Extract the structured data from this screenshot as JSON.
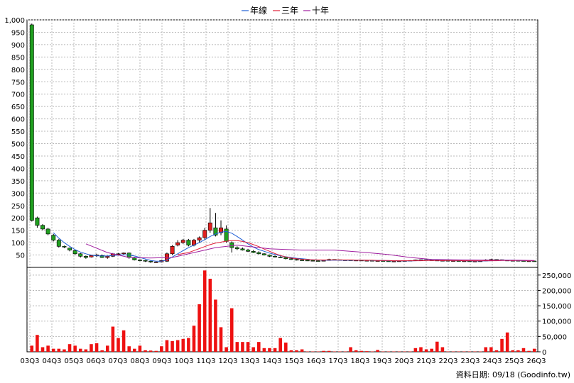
{
  "chart_data": {
    "type": "candlestick",
    "legend": [
      {
        "name": "年線",
        "color": "#1f5fd6"
      },
      {
        "name": "三年",
        "color": "#e0203a"
      },
      {
        "name": "十年",
        "color": "#a01fa0"
      }
    ],
    "x_ticks": [
      "03Q3",
      "04Q3",
      "05Q3",
      "06Q3",
      "07Q3",
      "08Q3",
      "09Q3",
      "10Q3",
      "11Q3",
      "12Q3",
      "13Q3",
      "14Q3",
      "15Q3",
      "16Q3",
      "17Q3",
      "18Q3",
      "19Q3",
      "20Q3",
      "21Q3",
      "22Q3",
      "23Q3",
      "24Q3",
      "25Q3",
      "26Q3"
    ],
    "price_axis": {
      "ticks": [
        "50",
        "100",
        "150",
        "200",
        "250",
        "300",
        "350",
        "400",
        "450",
        "500",
        "550",
        "600",
        "650",
        "700",
        "750",
        "800",
        "850",
        "900",
        "950",
        "1,000"
      ],
      "ylim": [
        0,
        1000
      ]
    },
    "volume_axis": {
      "ticks": [
        "0",
        "50,000",
        "100,000",
        "150,000",
        "200,000",
        "250,000"
      ],
      "ylim": [
        0,
        275000
      ]
    },
    "source_note": "資料日期: 09/18 (Goodinfo.tw)",
    "colors": {
      "up": "#e02020",
      "down": "#20a020",
      "volume": "#ee1111",
      "grid": "#b8b8b8"
    },
    "candles": [
      [
        980,
        190,
        985,
        185
      ],
      [
        200,
        170,
        205,
        160
      ],
      [
        170,
        155,
        175,
        150
      ],
      [
        155,
        135,
        160,
        130
      ],
      [
        130,
        110,
        135,
        105
      ],
      [
        110,
        85,
        115,
        80
      ],
      [
        85,
        82,
        88,
        78
      ],
      [
        78,
        70,
        80,
        65
      ],
      [
        68,
        55,
        70,
        50
      ],
      [
        55,
        45,
        58,
        40
      ],
      [
        45,
        40,
        48,
        35
      ],
      [
        42,
        48,
        50,
        40
      ],
      [
        48,
        50,
        55,
        42
      ],
      [
        48,
        40,
        52,
        38
      ],
      [
        40,
        45,
        48,
        35
      ],
      [
        45,
        55,
        58,
        42
      ],
      [
        52,
        55,
        58,
        48
      ],
      [
        55,
        58,
        60,
        50
      ],
      [
        58,
        40,
        60,
        35
      ],
      [
        38,
        30,
        42,
        28
      ],
      [
        30,
        28,
        32,
        25
      ],
      [
        28,
        25,
        30,
        22
      ],
      [
        25,
        22,
        28,
        18
      ],
      [
        20,
        22,
        25,
        18
      ],
      [
        22,
        28,
        30,
        20
      ],
      [
        25,
        55,
        60,
        22
      ],
      [
        55,
        85,
        90,
        50
      ],
      [
        90,
        100,
        110,
        85
      ],
      [
        100,
        110,
        115,
        95
      ],
      [
        110,
        90,
        115,
        85
      ],
      [
        90,
        110,
        115,
        85
      ],
      [
        110,
        120,
        125,
        100
      ],
      [
        120,
        150,
        160,
        110
      ],
      [
        150,
        180,
        240,
        140
      ],
      [
        160,
        130,
        220,
        125
      ],
      [
        140,
        160,
        190,
        130
      ],
      [
        155,
        105,
        170,
        100
      ],
      [
        100,
        80,
        105,
        60
      ],
      [
        80,
        75,
        85,
        70
      ],
      [
        75,
        70,
        80,
        68
      ],
      [
        70,
        65,
        75,
        62
      ],
      [
        65,
        60,
        70,
        58
      ],
      [
        60,
        55,
        65,
        52
      ],
      [
        55,
        50,
        58,
        48
      ],
      [
        50,
        45,
        52,
        42
      ],
      [
        45,
        42,
        48,
        40
      ],
      [
        42,
        40,
        45,
        38
      ],
      [
        40,
        35,
        42,
        32
      ],
      [
        35,
        32,
        38,
        30
      ],
      [
        32,
        30,
        34,
        28
      ],
      [
        30,
        29,
        32,
        28
      ],
      [
        29,
        28,
        30,
        27
      ],
      [
        28,
        27,
        29,
        26
      ],
      [
        27,
        26,
        28,
        25
      ],
      [
        27,
        28,
        30,
        26
      ],
      [
        28,
        32,
        35,
        27
      ],
      [
        32,
        31,
        33,
        30
      ],
      [
        31,
        30,
        32,
        29
      ],
      [
        30,
        30,
        31,
        29
      ],
      [
        30,
        29,
        31,
        28
      ],
      [
        29,
        29,
        30,
        28
      ],
      [
        29,
        28,
        30,
        27
      ],
      [
        28,
        28,
        29,
        27
      ],
      [
        28,
        27,
        29,
        26
      ],
      [
        27,
        27,
        28,
        26
      ],
      [
        27,
        26,
        28,
        25
      ],
      [
        26,
        25,
        27,
        24
      ],
      [
        25,
        25,
        26,
        24
      ],
      [
        25,
        26,
        27,
        24
      ],
      [
        26,
        27,
        28,
        25
      ],
      [
        27,
        28,
        29,
        26
      ],
      [
        28,
        30,
        31,
        27
      ],
      [
        30,
        31,
        32,
        29
      ],
      [
        31,
        30,
        32,
        29
      ],
      [
        30,
        29,
        31,
        28
      ],
      [
        29,
        28,
        30,
        27
      ],
      [
        28,
        28,
        29,
        27
      ],
      [
        28,
        27,
        29,
        26
      ],
      [
        27,
        27,
        28,
        26
      ],
      [
        27,
        26,
        28,
        25
      ],
      [
        26,
        26,
        27,
        25
      ],
      [
        26,
        25,
        27,
        24
      ],
      [
        25,
        25,
        26,
        24
      ],
      [
        25,
        26,
        27,
        24
      ],
      [
        26,
        30,
        33,
        25
      ],
      [
        30,
        32,
        35,
        29
      ],
      [
        32,
        31,
        33,
        30
      ],
      [
        31,
        29,
        32,
        28
      ],
      [
        29,
        28,
        30,
        27
      ],
      [
        28,
        28,
        29,
        27
      ],
      [
        28,
        27,
        29,
        26
      ],
      [
        27,
        26,
        28,
        25
      ],
      [
        26,
        26,
        27,
        25
      ],
      [
        26,
        25,
        27,
        24
      ]
    ],
    "volume": [
      20000,
      55000,
      15000,
      20000,
      10000,
      10000,
      8000,
      25000,
      20000,
      10000,
      8000,
      25000,
      28000,
      5000,
      20000,
      82000,
      45000,
      70000,
      18000,
      10000,
      20000,
      5000,
      4000,
      3000,
      18000,
      38000,
      35000,
      38000,
      42000,
      45000,
      85000,
      155000,
      265000,
      238000,
      170000,
      80000,
      15000,
      142000,
      32000,
      32000,
      32000,
      15000,
      32000,
      12000,
      12000,
      12000,
      45000,
      30000,
      5000,
      5000,
      8000,
      1000,
      1000,
      1000,
      3000,
      3000,
      1000,
      1000,
      1000,
      15000,
      5000,
      3000,
      2000,
      1000,
      6000,
      1000,
      1000,
      1000,
      1000,
      1000,
      1000,
      12000,
      15000,
      8000,
      10000,
      33000,
      15000,
      1000,
      1000,
      1000,
      1000,
      1000,
      1000,
      1000,
      15000,
      15000,
      5000,
      42000,
      63000,
      5000,
      5000,
      12000,
      3000,
      10000
    ],
    "series": [
      {
        "name": "年線",
        "color": "#1f5fd6",
        "values": [
          null,
          null,
          null,
          null,
          140,
          118,
          100,
          85,
          72,
          62,
          55,
          50,
          47,
          46,
          46,
          48,
          50,
          51,
          50,
          46,
          40,
          34,
          28,
          25,
          25,
          30,
          42,
          55,
          68,
          80,
          90,
          100,
          112,
          125,
          135,
          142,
          145,
          138,
          125,
          110,
          95,
          82,
          72,
          65,
          58,
          52,
          47,
          43,
          40,
          37,
          35,
          33,
          31,
          30,
          29,
          29,
          29,
          29,
          29,
          29,
          29,
          29,
          29,
          28,
          28,
          28,
          27,
          27,
          27,
          26,
          26,
          27,
          28,
          29,
          29,
          30,
          29,
          29,
          28,
          28,
          27,
          27,
          26,
          26,
          26,
          27,
          28,
          29,
          29,
          29,
          28,
          28,
          27,
          27
        ]
      },
      {
        "name": "三年",
        "color": "#e0203a",
        "values": [
          null,
          null,
          null,
          null,
          null,
          null,
          null,
          null,
          null,
          null,
          null,
          null,
          null,
          null,
          null,
          null,
          null,
          null,
          null,
          null,
          null,
          null,
          null,
          null,
          null,
          null,
          null,
          52,
          56,
          60,
          68,
          76,
          84,
          92,
          98,
          102,
          106,
          108,
          108,
          105,
          100,
          92,
          84,
          74,
          65,
          56,
          48,
          42,
          38,
          35,
          33,
          32,
          31,
          30,
          30,
          30,
          30,
          30,
          30,
          30,
          29,
          29,
          29,
          29,
          28,
          28,
          28,
          27,
          27,
          27,
          27,
          27,
          27,
          28,
          28,
          28,
          28,
          28,
          28,
          28,
          27,
          27,
          27,
          27,
          27,
          27,
          27,
          28,
          28,
          28,
          28,
          28,
          27,
          27
        ]
      },
      {
        "name": "十年",
        "color": "#a01fa0",
        "values": [
          null,
          null,
          null,
          null,
          null,
          null,
          null,
          null,
          null,
          null,
          null,
          null,
          null,
          null,
          null,
          null,
          null,
          null,
          null,
          null,
          null,
          null,
          null,
          null,
          null,
          null,
          null,
          null,
          null,
          null,
          null,
          null,
          null,
          null,
          null,
          null,
          null,
          null,
          null,
          null,
          null,
          null,
          null,
          null,
          null,
          null,
          null,
          null,
          null,
          null,
          null,
          null,
          null,
          null,
          null,
          null,
          null,
          null,
          null,
          null,
          null,
          null,
          null,
          null,
          null,
          null,
          null,
          null,
          null,
          null,
          null,
          null,
          null,
          null,
          null,
          null,
          null,
          null,
          null,
          null,
          null,
          null,
          null,
          null,
          null,
          null,
          null,
          null,
          null,
          null,
          null,
          null,
          null,
          null
        ]
      }
    ],
    "series_10y_extra": [
      null,
      null,
      null,
      null,
      null,
      null,
      null,
      null,
      null,
      null,
      null,
      null,
      null,
      null,
      null,
      null,
      null,
      null,
      null,
      null,
      null,
      null,
      null,
      null,
      null,
      null,
      null,
      null,
      null,
      null,
      null,
      null,
      null,
      null,
      null,
      null,
      null,
      null,
      null,
      null,
      null,
      null,
      null,
      null,
      null,
      null,
      null,
      null,
      null,
      null,
      null,
      null,
      null,
      null,
      null,
      null,
      null,
      null,
      null,
      null,
      null,
      null,
      null,
      null,
      null,
      null,
      null,
      null,
      null,
      null,
      null,
      null,
      null,
      null,
      null,
      null,
      null,
      null,
      null,
      null,
      null,
      null,
      null,
      null,
      null,
      null,
      null,
      null,
      null,
      null,
      null,
      null,
      null,
      null
    ],
    "ten_year_points": [
      [
        10,
        95
      ],
      [
        14,
        60
      ],
      [
        18,
        40
      ],
      [
        22,
        38
      ],
      [
        26,
        40
      ],
      [
        30,
        60
      ],
      [
        34,
        80
      ],
      [
        38,
        90
      ],
      [
        44,
        75
      ],
      [
        50,
        70
      ],
      [
        56,
        70
      ],
      [
        62,
        60
      ],
      [
        66,
        52
      ],
      [
        70,
        40
      ],
      [
        74,
        32
      ],
      [
        80,
        30
      ],
      [
        86,
        29
      ],
      [
        90,
        29
      ],
      [
        93,
        28
      ]
    ]
  }
}
